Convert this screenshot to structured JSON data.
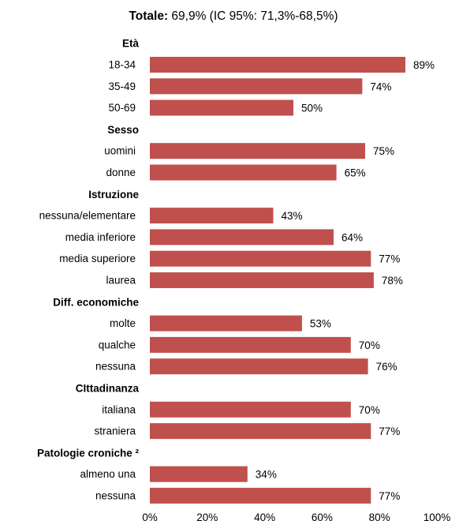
{
  "chart_data": {
    "type": "bar",
    "orientation": "horizontal",
    "title_bold": "Totale:",
    "title_rest": " 69,9% (IC 95%: 71,3%-68,5%)",
    "xlim": [
      0,
      100
    ],
    "x_ticks": [
      "0%",
      "20%",
      "40%",
      "60%",
      "80%",
      "100%"
    ],
    "bar_color": "#c0504d",
    "groups": [
      {
        "label": "Età",
        "items": [
          {
            "category": "18-34",
            "value": 89,
            "value_label": "89%"
          },
          {
            "category": "35-49",
            "value": 74,
            "value_label": "74%"
          },
          {
            "category": "50-69",
            "value": 50,
            "value_label": "50%"
          }
        ]
      },
      {
        "label": "Sesso",
        "items": [
          {
            "category": "uomini",
            "value": 75,
            "value_label": "75%"
          },
          {
            "category": "donne",
            "value": 65,
            "value_label": "65%"
          }
        ]
      },
      {
        "label": "Istruzione",
        "items": [
          {
            "category": "nessuna/elementare",
            "value": 43,
            "value_label": "43%"
          },
          {
            "category": "media inferiore",
            "value": 64,
            "value_label": "64%"
          },
          {
            "category": "media superiore",
            "value": 77,
            "value_label": "77%"
          },
          {
            "category": "laurea",
            "value": 78,
            "value_label": "78%"
          }
        ]
      },
      {
        "label": "Diff. economiche",
        "items": [
          {
            "category": "molte",
            "value": 53,
            "value_label": "53%"
          },
          {
            "category": "qualche",
            "value": 70,
            "value_label": "70%"
          },
          {
            "category": "nessuna",
            "value": 76,
            "value_label": "76%"
          }
        ]
      },
      {
        "label": "CIttadinanza",
        "items": [
          {
            "category": "italiana",
            "value": 70,
            "value_label": "70%"
          },
          {
            "category": "straniera",
            "value": 77,
            "value_label": "77%"
          }
        ]
      },
      {
        "label": "Patologie croniche ²",
        "items": [
          {
            "category": "almeno una",
            "value": 34,
            "value_label": "34%"
          },
          {
            "category": "nessuna",
            "value": 77,
            "value_label": "77%"
          }
        ]
      }
    ]
  }
}
